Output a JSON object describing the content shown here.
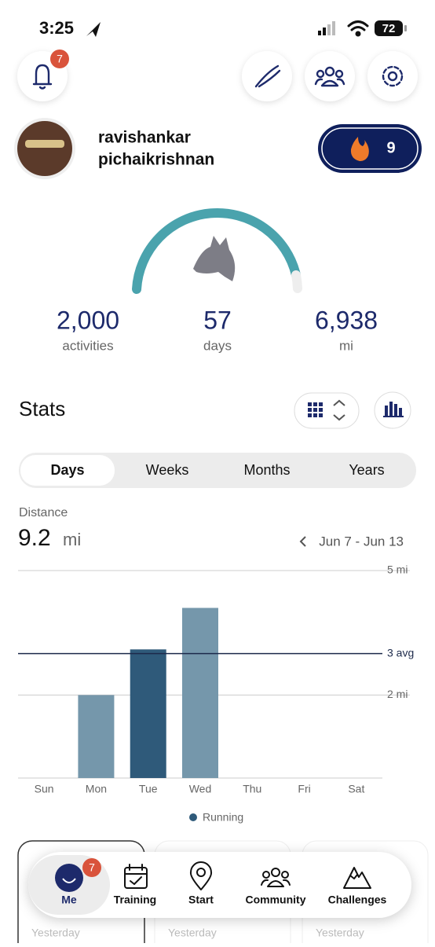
{
  "status_bar": {
    "time": "3:25",
    "battery": "72"
  },
  "header": {
    "notification_count": "7"
  },
  "profile": {
    "name_line1": "ravishankar",
    "name_line2": "pichaikrishnan",
    "streak": "9"
  },
  "summary": [
    {
      "value": "2,000",
      "label": "activities"
    },
    {
      "value": "57",
      "label": "days"
    },
    {
      "value": "6,938",
      "label": "mi"
    }
  ],
  "stats": {
    "title": "Stats",
    "tabs": [
      "Days",
      "Weeks",
      "Months",
      "Years"
    ],
    "selected_tab": 0,
    "metric_label": "Distance",
    "total": "9.2",
    "total_unit": "mi",
    "date_range": "Jun 7 - Jun 13"
  },
  "chart_data": {
    "type": "bar",
    "categories": [
      "Sun",
      "Mon",
      "Tue",
      "Wed",
      "Thu",
      "Fri",
      "Sat"
    ],
    "series": [
      {
        "name": "Running",
        "color": "#2f5a7a",
        "values": [
          0,
          2.0,
          3.1,
          4.1,
          0,
          0,
          0
        ],
        "colors": [
          "#7597ab",
          "#7597ab",
          "#2f5a7a",
          "#7597ab",
          "#7597ab",
          "#7597ab",
          "#7597ab"
        ]
      }
    ],
    "ylim": [
      0,
      5
    ],
    "yticks": [
      {
        "value": 2,
        "label": "2 mi"
      },
      {
        "value": 5,
        "label": "5 mi"
      }
    ],
    "average": {
      "value": 3,
      "label": "3 avg"
    },
    "grid": true
  },
  "cards": [
    "Yesterday",
    "Yesterday",
    "Yesterday"
  ],
  "nav": {
    "items": [
      "Me",
      "Training",
      "Start",
      "Community",
      "Challenges"
    ],
    "badge": "7",
    "active": 0
  }
}
